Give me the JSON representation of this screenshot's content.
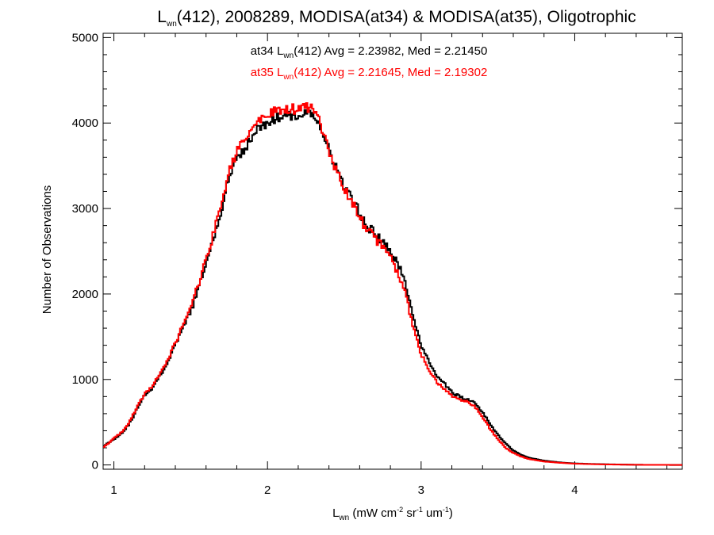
{
  "title": {
    "main": "L",
    "sub": "wn",
    "rest": "(412), 2008289, MODISA(at34) & MODISA(at35), Oligotrophic"
  },
  "annotations": [
    {
      "prefix": "at34 L",
      "sub": "wn",
      "rest": "(412) Avg = 2.23982, Med = 2.21450",
      "color": "#000000"
    },
    {
      "prefix": "at35 L",
      "sub": "wn",
      "rest": "(412) Avg = 2.21645, Med = 2.19302",
      "color": "#ff0000"
    }
  ],
  "xaxis": {
    "label_main": "L",
    "label_sub": "wn",
    "label_p1": " (mW cm",
    "label_sup1": "-2",
    "label_p2": " sr",
    "label_sup2": "-1",
    "label_p3": " um",
    "label_sup3": "-1",
    "label_p4": ")"
  },
  "yaxis": {
    "label": "Number of Observations"
  },
  "chart_data": {
    "type": "line",
    "step": true,
    "xlim": [
      0.93,
      4.7
    ],
    "ylim": [
      -50,
      5050
    ],
    "x_ticks": [
      1,
      2,
      3,
      4
    ],
    "x_tick_labels": [
      "1",
      "2",
      "3",
      "4"
    ],
    "y_ticks": [
      0,
      1000,
      2000,
      3000,
      4000,
      5000
    ],
    "y_tick_labels": [
      "0",
      "1000",
      "2000",
      "3000",
      "4000",
      "5000"
    ],
    "grid": false,
    "series": [
      {
        "name": "at34",
        "color": "#000000",
        "points": [
          [
            0.93,
            220
          ],
          [
            1.0,
            300
          ],
          [
            1.05,
            370
          ],
          [
            1.1,
            480
          ],
          [
            1.15,
            650
          ],
          [
            1.2,
            820
          ],
          [
            1.25,
            900
          ],
          [
            1.3,
            1050
          ],
          [
            1.35,
            1200
          ],
          [
            1.4,
            1400
          ],
          [
            1.45,
            1600
          ],
          [
            1.5,
            1800
          ],
          [
            1.55,
            2050
          ],
          [
            1.6,
            2350
          ],
          [
            1.65,
            2650
          ],
          [
            1.7,
            3000
          ],
          [
            1.75,
            3350
          ],
          [
            1.8,
            3600
          ],
          [
            1.85,
            3700
          ],
          [
            1.9,
            3850
          ],
          [
            1.95,
            3950
          ],
          [
            2.0,
            4000
          ],
          [
            2.05,
            4050
          ],
          [
            2.1,
            4070
          ],
          [
            2.15,
            4080
          ],
          [
            2.2,
            4100
          ],
          [
            2.25,
            4120
          ],
          [
            2.3,
            4100
          ],
          [
            2.35,
            3950
          ],
          [
            2.4,
            3700
          ],
          [
            2.45,
            3450
          ],
          [
            2.5,
            3250
          ],
          [
            2.55,
            3100
          ],
          [
            2.6,
            2950
          ],
          [
            2.65,
            2800
          ],
          [
            2.7,
            2700
          ],
          [
            2.75,
            2600
          ],
          [
            2.8,
            2500
          ],
          [
            2.85,
            2350
          ],
          [
            2.9,
            2100
          ],
          [
            2.95,
            1750
          ],
          [
            3.0,
            1400
          ],
          [
            3.05,
            1200
          ],
          [
            3.1,
            1050
          ],
          [
            3.15,
            950
          ],
          [
            3.2,
            850
          ],
          [
            3.25,
            800
          ],
          [
            3.3,
            770
          ],
          [
            3.35,
            720
          ],
          [
            3.4,
            620
          ],
          [
            3.45,
            480
          ],
          [
            3.5,
            350
          ],
          [
            3.55,
            250
          ],
          [
            3.6,
            170
          ],
          [
            3.65,
            120
          ],
          [
            3.7,
            85
          ],
          [
            3.8,
            50
          ],
          [
            3.9,
            30
          ],
          [
            4.0,
            18
          ],
          [
            4.1,
            12
          ],
          [
            4.2,
            8
          ],
          [
            4.3,
            5
          ],
          [
            4.4,
            2
          ],
          [
            4.5,
            1
          ],
          [
            4.7,
            0
          ]
        ]
      },
      {
        "name": "at35",
        "color": "#ff0000",
        "points": [
          [
            0.93,
            200
          ],
          [
            1.0,
            310
          ],
          [
            1.05,
            380
          ],
          [
            1.1,
            500
          ],
          [
            1.15,
            670
          ],
          [
            1.2,
            830
          ],
          [
            1.25,
            920
          ],
          [
            1.3,
            1070
          ],
          [
            1.35,
            1230
          ],
          [
            1.4,
            1430
          ],
          [
            1.45,
            1640
          ],
          [
            1.5,
            1850
          ],
          [
            1.55,
            2100
          ],
          [
            1.6,
            2400
          ],
          [
            1.65,
            2720
          ],
          [
            1.7,
            3080
          ],
          [
            1.75,
            3420
          ],
          [
            1.8,
            3680
          ],
          [
            1.85,
            3780
          ],
          [
            1.9,
            3930
          ],
          [
            1.95,
            4030
          ],
          [
            2.0,
            4100
          ],
          [
            2.05,
            4130
          ],
          [
            2.1,
            4150
          ],
          [
            2.15,
            4160
          ],
          [
            2.2,
            4170
          ],
          [
            2.25,
            4180
          ],
          [
            2.3,
            4150
          ],
          [
            2.35,
            3970
          ],
          [
            2.4,
            3690
          ],
          [
            2.45,
            3420
          ],
          [
            2.5,
            3220
          ],
          [
            2.55,
            3060
          ],
          [
            2.6,
            2900
          ],
          [
            2.65,
            2750
          ],
          [
            2.7,
            2650
          ],
          [
            2.75,
            2550
          ],
          [
            2.8,
            2420
          ],
          [
            2.85,
            2250
          ],
          [
            2.9,
            1980
          ],
          [
            2.95,
            1620
          ],
          [
            3.0,
            1300
          ],
          [
            3.05,
            1120
          ],
          [
            3.1,
            980
          ],
          [
            3.15,
            890
          ],
          [
            3.2,
            800
          ],
          [
            3.25,
            770
          ],
          [
            3.3,
            740
          ],
          [
            3.35,
            680
          ],
          [
            3.4,
            560
          ],
          [
            3.45,
            420
          ],
          [
            3.5,
            300
          ],
          [
            3.55,
            200
          ],
          [
            3.6,
            140
          ],
          [
            3.65,
            100
          ],
          [
            3.7,
            70
          ],
          [
            3.8,
            40
          ],
          [
            3.9,
            25
          ],
          [
            4.0,
            15
          ],
          [
            4.1,
            10
          ],
          [
            4.2,
            6
          ],
          [
            4.3,
            4
          ],
          [
            4.4,
            2
          ],
          [
            4.5,
            1
          ],
          [
            4.7,
            0
          ]
        ]
      }
    ]
  }
}
